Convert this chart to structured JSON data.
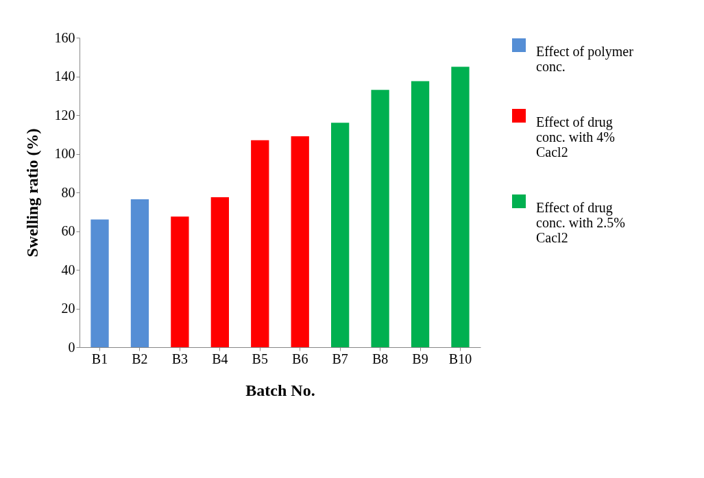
{
  "chart_data": {
    "type": "bar",
    "xlabel": "Batch No.",
    "ylabel": "Swelling ratio (%)",
    "categories": [
      "B1",
      "B2",
      "B3",
      "B4",
      "B5",
      "B6",
      "B7",
      "B8",
      "B9",
      "B10"
    ],
    "series": [
      {
        "name": "Effect of polymer conc.",
        "color": "#558ed5",
        "values": [
          66,
          76.5,
          null,
          null,
          null,
          null,
          null,
          null,
          null,
          null
        ]
      },
      {
        "name": "Effect of drug conc. with 4% Cacl2",
        "color": "#ff0000",
        "values": [
          null,
          null,
          67.5,
          77.5,
          107,
          109,
          null,
          null,
          null,
          null
        ]
      },
      {
        "name": "Effect of drug conc. with 2.5%  Cacl2",
        "color": "#00b050",
        "values": [
          null,
          null,
          null,
          null,
          null,
          null,
          116,
          133,
          137.5,
          145
        ]
      }
    ],
    "ylim": [
      0,
      160
    ],
    "yticks": [
      0,
      20,
      40,
      60,
      80,
      100,
      120,
      140,
      160
    ],
    "grid": false,
    "legend": "right"
  }
}
